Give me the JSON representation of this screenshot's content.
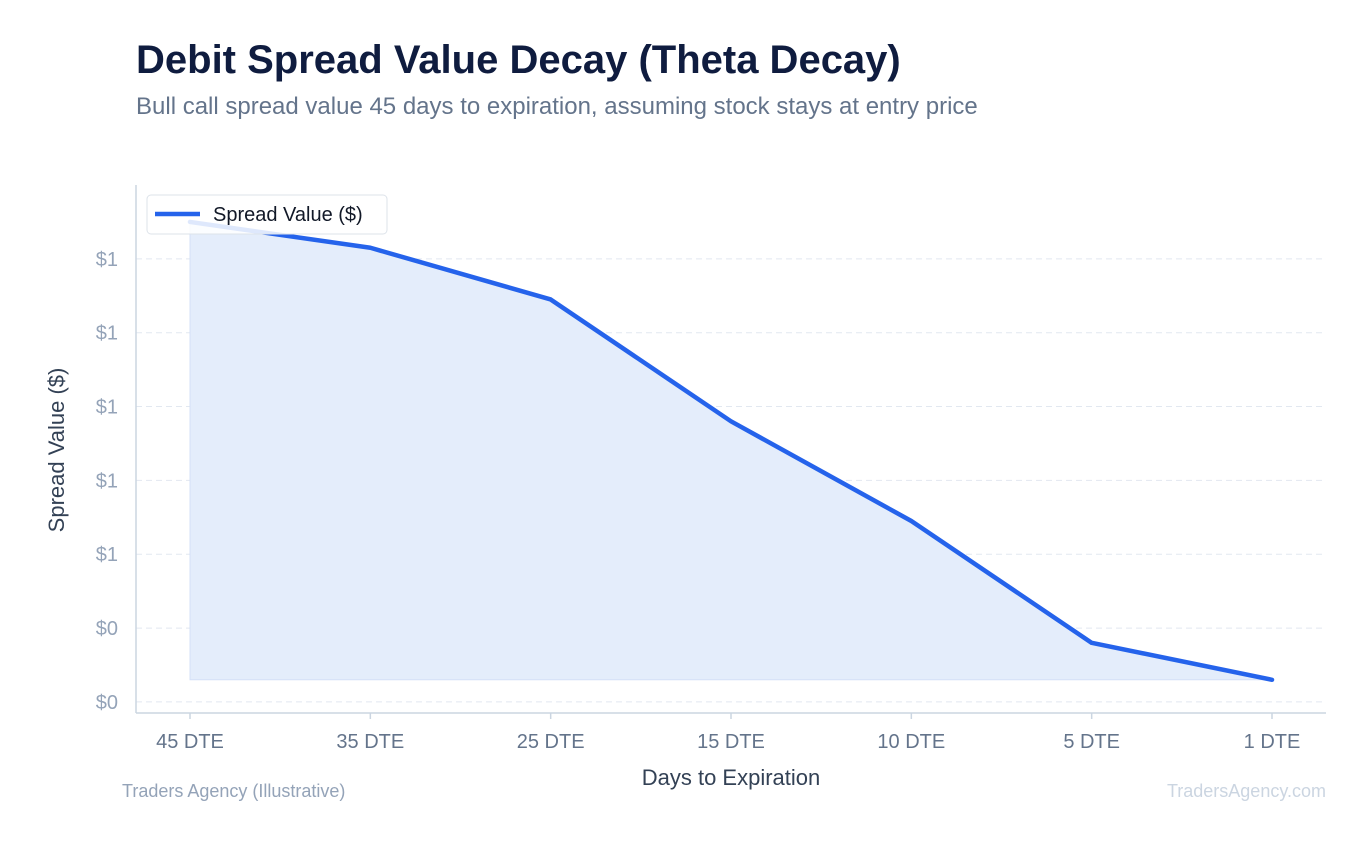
{
  "header": {
    "title": "Debit Spread Value Decay (Theta Decay)",
    "subtitle": "Bull call spread value 45 days to expiration, assuming stock stays at entry price"
  },
  "footer": {
    "source": "Traders Agency (Illustrative)",
    "watermark": "TradersAgency.com"
  },
  "chart_data": {
    "type": "area",
    "xlabel": "Days to Expiration",
    "ylabel": "Spread Value ($)",
    "categories": [
      "45 DTE",
      "35 DTE",
      "25 DTE",
      "15 DTE",
      "10 DTE",
      "5 DTE",
      "1 DTE"
    ],
    "series": [
      {
        "name": "Spread Value ($)",
        "values": [
          1.45,
          1.38,
          1.24,
          0.91,
          0.64,
          0.31,
          0.21
        ]
      }
    ],
    "y_ticks": [
      {
        "value": 1.35,
        "label": "$1"
      },
      {
        "value": 1.15,
        "label": "$1"
      },
      {
        "value": 0.95,
        "label": "$1"
      },
      {
        "value": 0.75,
        "label": "$1"
      },
      {
        "value": 0.55,
        "label": "$1"
      },
      {
        "value": 0.35,
        "label": "$0"
      },
      {
        "value": 0.15,
        "label": "$0"
      }
    ],
    "ylim": [
      0.12,
      1.55
    ],
    "legend_position": "top-left",
    "grid": true,
    "colors": {
      "line": "#2563eb",
      "fill": "#e4edfb",
      "grid": "#e2e8f0",
      "axis": "#cbd5e1",
      "tick": "#94a3b8",
      "xtick": "#64748b",
      "label": "#334155"
    }
  }
}
